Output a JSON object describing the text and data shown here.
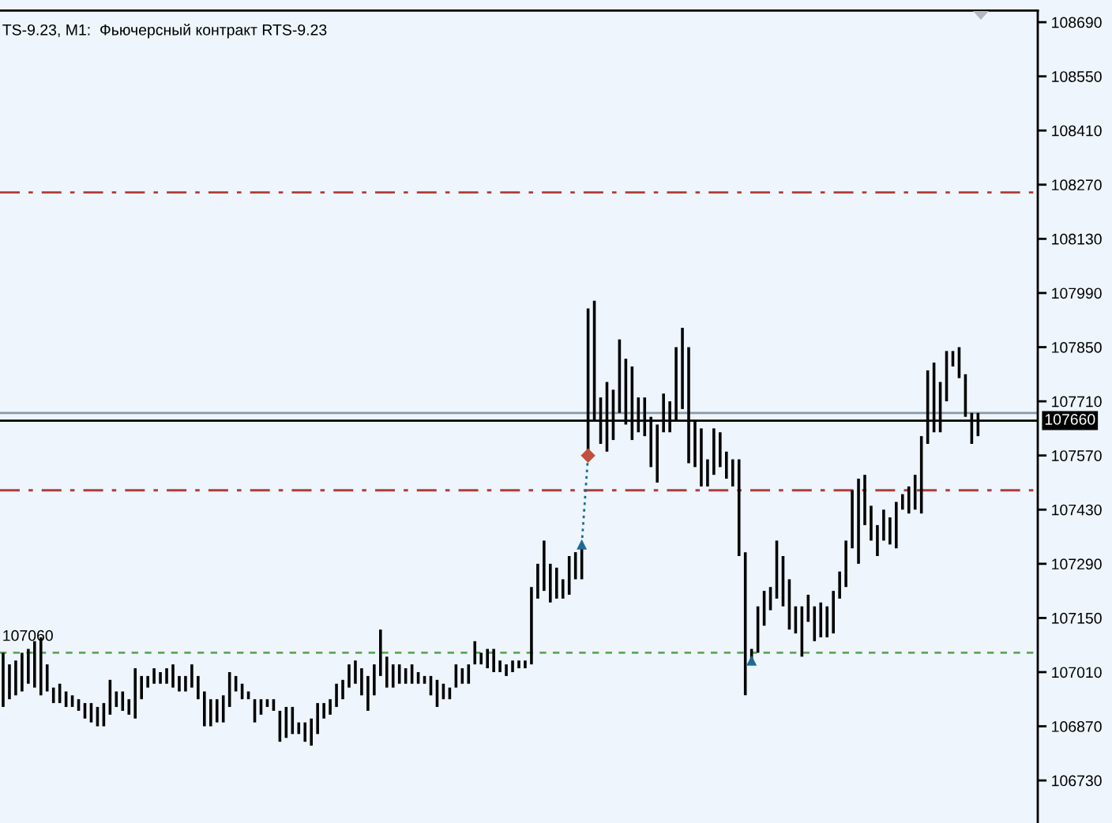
{
  "chart_data": {
    "type": "bar",
    "title": "TS-9.23, M1:  Фьючерсный контракт RTS-9.23",
    "categories": [
      null,
      null,
      null,
      null,
      null,
      null,
      null,
      null,
      null,
      null,
      null,
      null,
      null,
      null,
      null,
      null,
      null,
      null,
      null,
      null,
      null,
      null,
      null,
      null,
      null,
      null,
      null,
      null,
      null,
      null,
      null,
      null,
      null,
      null,
      null,
      null,
      null,
      null,
      null,
      null,
      null,
      null,
      null,
      null,
      null,
      null,
      null,
      null,
      null,
      null,
      null,
      null,
      null,
      null,
      null,
      null,
      null,
      null,
      null,
      null,
      null,
      null,
      null,
      null,
      null,
      null,
      null,
      null,
      null,
      null,
      null,
      null,
      null,
      null,
      null,
      null,
      null,
      null,
      null,
      null,
      null,
      null,
      null,
      null,
      null,
      null,
      null,
      null,
      null,
      null,
      null,
      null,
      null,
      null,
      null,
      null,
      null,
      null,
      null,
      null,
      null,
      null,
      null,
      null,
      null,
      null,
      null,
      null,
      null,
      null,
      null,
      null,
      null,
      null,
      null,
      null,
      null,
      null,
      null,
      null,
      null,
      null,
      null,
      null,
      null,
      null,
      null,
      null,
      null,
      null,
      null,
      null,
      null,
      null,
      null,
      null,
      null,
      null,
      null,
      null,
      null,
      null,
      null,
      null,
      null,
      null,
      null,
      null,
      null,
      null,
      null,
      null,
      null,
      null,
      null,
      null,
      null,
      null,
      null,
      null,
      null,
      null,
      null,
      null,
      null
    ],
    "series": [
      {
        "color": "#000000",
        "base": [
          106920,
          106940,
          106950,
          106960,
          106980,
          106970,
          106950,
          106960,
          106930,
          106930,
          106920,
          106920,
          106910,
          106890,
          106880,
          106870,
          106870,
          106900,
          106920,
          106910,
          106900,
          106890,
          106940,
          106970,
          106980,
          106980,
          106980,
          106970,
          106960,
          106960,
          106970,
          106940,
          106870,
          106870,
          106880,
          106880,
          106920,
          106960,
          106940,
          106940,
          106880,
          106900,
          106920,
          106910,
          106830,
          106840,
          106850,
          106850,
          106830,
          106820,
          106850,
          106890,
          106900,
          106920,
          106940,
          106970,
          106980,
          106950,
          106910,
          106950,
          107000,
          106970,
          106970,
          106980,
          106980,
          106980,
          106980,
          106980,
          106950,
          106920,
          106940,
          106940,
          106970,
          106980,
          106980,
          107030,
          107030,
          107020,
          107010,
          107010,
          107000,
          107010,
          107020,
          107020,
          107030,
          107200,
          107220,
          107190,
          107200,
          107200,
          107210,
          107250,
          107250,
          107580,
          107660,
          107600,
          107580,
          107610,
          107680,
          107650,
          107610,
          107630,
          107620,
          107540,
          107500,
          107630,
          107630,
          107660,
          107690,
          107550,
          107540,
          107490,
          107490,
          107520,
          107540,
          107510,
          107490,
          107310,
          106950,
          107030,
          107060,
          107130,
          107170,
          107200,
          107180,
          107120,
          107110,
          107050,
          107140,
          107090,
          107100,
          107100,
          107110,
          107200,
          107230,
          107330,
          107290,
          107390,
          107350,
          107310,
          107350,
          107340,
          107330,
          107430,
          107420,
          107430,
          107420,
          107600,
          107630,
          107630,
          107710,
          107800,
          107770,
          107670,
          107600,
          107620,
          null,
          null,
          null,
          null,
          null,
          null,
          null,
          null,
          null
        ],
        "values": [
          140,
          90,
          90,
          100,
          90,
          120,
          150,
          70,
          40,
          50,
          40,
          30,
          30,
          40,
          50,
          50,
          60,
          90,
          40,
          50,
          40,
          130,
          60,
          30,
          40,
          30,
          40,
          60,
          40,
          40,
          60,
          60,
          90,
          70,
          60,
          70,
          90,
          40,
          40,
          20,
          60,
          40,
          20,
          30,
          80,
          80,
          70,
          30,
          50,
          70,
          80,
          40,
          40,
          60,
          50,
          60,
          60,
          70,
          90,
          80,
          120,
          80,
          60,
          50,
          40,
          50,
          30,
          20,
          50,
          70,
          40,
          30,
          60,
          40,
          50,
          60,
          30,
          50,
          60,
          30,
          30,
          30,
          20,
          20,
          200,
          90,
          130,
          100,
          80,
          50,
          100,
          70,
          80,
          370,
          310,
          120,
          180,
          130,
          190,
          170,
          190,
          90,
          100,
          130,
          150,
          100,
          80,
          190,
          210,
          300,
          120,
          150,
          70,
          120,
          90,
          70,
          70,
          250,
          370,
          40,
          120,
          90,
          60,
          150,
          130,
          130,
          70,
          130,
          70,
          90,
          90,
          80,
          110,
          70,
          120,
          150,
          220,
          130,
          90,
          80,
          80,
          70,
          120,
          40,
          70,
          90,
          200,
          190,
          180,
          130,
          130,
          40,
          80,
          110,
          80,
          60,
          null,
          null,
          null,
          null,
          null,
          null,
          null,
          null,
          null
        ]
      },
      {
        "type": "scatter",
        "color": "#1d6a96",
        "marker": "triangle",
        "values": [
          null,
          null,
          null,
          null,
          null,
          null,
          null,
          null,
          null,
          null,
          null,
          null,
          null,
          null,
          null,
          null,
          null,
          null,
          null,
          null,
          null,
          null,
          null,
          null,
          null,
          null,
          null,
          null,
          null,
          null,
          null,
          null,
          null,
          null,
          null,
          null,
          null,
          null,
          null,
          null,
          null,
          null,
          null,
          null,
          null,
          null,
          null,
          null,
          null,
          null,
          null,
          null,
          null,
          null,
          null,
          null,
          null,
          null,
          null,
          null,
          null,
          null,
          null,
          null,
          null,
          null,
          null,
          null,
          null,
          null,
          null,
          null,
          null,
          null,
          null,
          null,
          null,
          null,
          null,
          null,
          null,
          null,
          null,
          null,
          null,
          null,
          null,
          null,
          null,
          null,
          null,
          null,
          107340,
          null,
          null,
          null,
          null,
          null,
          null,
          null,
          null,
          null,
          null,
          null,
          null,
          null,
          null,
          null,
          null,
          null,
          null,
          null,
          null,
          null,
          null,
          null,
          null,
          null,
          null,
          107040,
          null,
          null,
          null,
          null,
          null,
          null,
          null,
          null,
          null,
          null,
          null,
          null,
          null,
          null,
          null,
          null,
          null,
          null,
          null,
          null,
          null,
          null,
          null,
          null,
          null,
          null,
          null,
          null,
          null,
          null,
          null,
          null,
          null,
          null,
          null,
          null,
          null,
          null,
          null,
          null,
          null,
          null,
          null,
          null,
          null
        ]
      },
      {
        "type": "scatter",
        "color": "#c0503c",
        "marker": "diamond",
        "values": [
          null,
          null,
          null,
          null,
          null,
          null,
          null,
          null,
          null,
          null,
          null,
          null,
          null,
          null,
          null,
          null,
          null,
          null,
          null,
          null,
          null,
          null,
          null,
          null,
          null,
          null,
          null,
          null,
          null,
          null,
          null,
          null,
          null,
          null,
          null,
          null,
          null,
          null,
          null,
          null,
          null,
          null,
          null,
          null,
          null,
          null,
          null,
          null,
          null,
          null,
          null,
          null,
          null,
          null,
          null,
          null,
          null,
          null,
          null,
          null,
          null,
          null,
          null,
          null,
          null,
          null,
          null,
          null,
          null,
          null,
          null,
          null,
          null,
          null,
          null,
          null,
          null,
          null,
          null,
          null,
          null,
          null,
          null,
          null,
          null,
          null,
          null,
          null,
          null,
          null,
          null,
          null,
          null,
          107570,
          null,
          null,
          null,
          null,
          null,
          null,
          null,
          null,
          null,
          null,
          null,
          null,
          null,
          null,
          null,
          null,
          null,
          null,
          null,
          null,
          null,
          null,
          null,
          null,
          null,
          null,
          null,
          null,
          null,
          null,
          null,
          null,
          null,
          null,
          null,
          null,
          null,
          null,
          null,
          null,
          null,
          null,
          null,
          null,
          null,
          null,
          null,
          null,
          null,
          null,
          null,
          null,
          null,
          null,
          null,
          null,
          null,
          null,
          null,
          null,
          null,
          null,
          null,
          null,
          null,
          null,
          null,
          null,
          null,
          null,
          null
        ]
      },
      {
        "type": "line",
        "color": "#1d6a96",
        "line_style": "dotted",
        "values": [
          null,
          null,
          null,
          null,
          null,
          null,
          null,
          null,
          null,
          null,
          null,
          null,
          null,
          null,
          null,
          null,
          null,
          null,
          null,
          null,
          null,
          null,
          null,
          null,
          null,
          null,
          null,
          null,
          null,
          null,
          null,
          null,
          null,
          null,
          null,
          null,
          null,
          null,
          null,
          null,
          null,
          null,
          null,
          null,
          null,
          null,
          null,
          null,
          null,
          null,
          null,
          null,
          null,
          null,
          null,
          null,
          null,
          null,
          null,
          null,
          null,
          null,
          null,
          null,
          null,
          null,
          null,
          null,
          null,
          null,
          null,
          null,
          null,
          null,
          null,
          null,
          null,
          null,
          null,
          null,
          null,
          null,
          null,
          null,
          null,
          null,
          null,
          null,
          null,
          null,
          null,
          null,
          107340,
          107570,
          null,
          null,
          null,
          null,
          null,
          null,
          null,
          null,
          null,
          null,
          null,
          null,
          null,
          null,
          null,
          null,
          null,
          null,
          null,
          null,
          null,
          null,
          null,
          null,
          null,
          null,
          null,
          null,
          null,
          null,
          null,
          null,
          null,
          null,
          null,
          null,
          null,
          null,
          null,
          null,
          null,
          null,
          null,
          null,
          null,
          null,
          null,
          null,
          null,
          null,
          null,
          null,
          null,
          null,
          null,
          null,
          null,
          null,
          null,
          null,
          null,
          null,
          null,
          null,
          null,
          null,
          null,
          null,
          null,
          null,
          null
        ]
      }
    ],
    "ylim": [
      106620,
      108720
    ],
    "yticks": [
      108690,
      108550,
      108410,
      108270,
      108130,
      107990,
      107850,
      107710,
      107570,
      107430,
      107290,
      107150,
      107010,
      106870,
      106730
    ],
    "ref_lines": [
      {
        "axis": "y",
        "value": 108250,
        "color": "#b03c3c",
        "line_style": "dashdot"
      },
      {
        "axis": "y",
        "value": 107480,
        "color": "#b03c3c",
        "line_style": "dashdot"
      },
      {
        "axis": "y",
        "value": 107060,
        "label": "107060",
        "color": "#5aa85a",
        "line_style": "dashed"
      },
      {
        "axis": "y",
        "value": 107680,
        "color": "#8a9aa8",
        "line_style": "solid"
      },
      {
        "axis": "y",
        "value": 107660,
        "label": "107660",
        "color": "#000000",
        "line_style": "solid"
      }
    ],
    "tick_labels": "y"
  }
}
